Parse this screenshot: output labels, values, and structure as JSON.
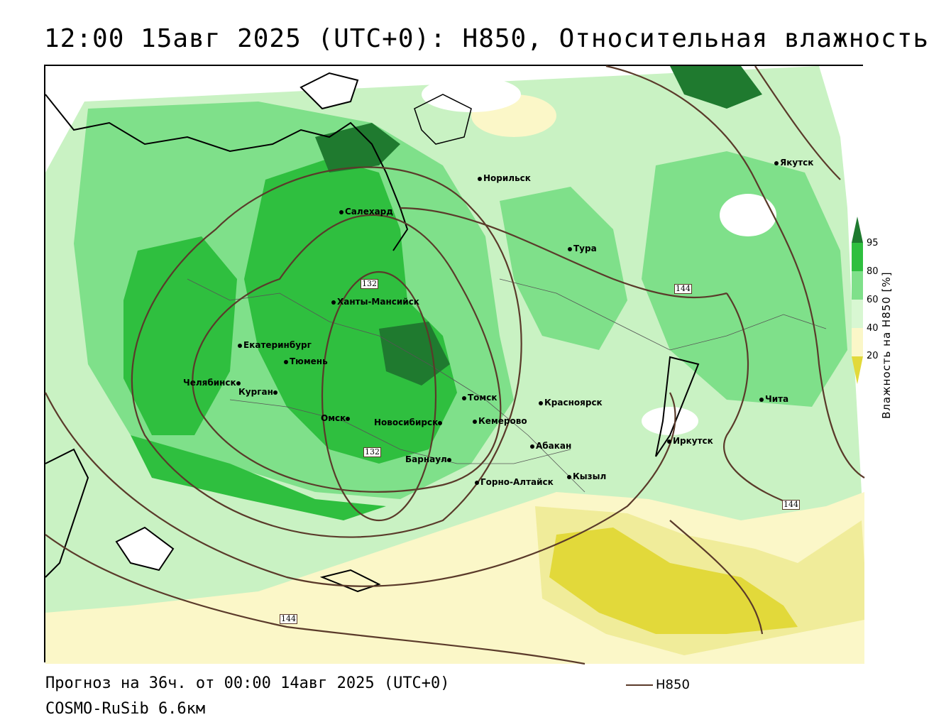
{
  "title": "12:00 15авг 2025 (UTC+0): H850, Относительная влажность",
  "footer": {
    "forecast": "Прогноз на 36ч. от 00:00 14авг 2025 (UTC+0)",
    "model": "COSMO-RuSib 6.6км"
  },
  "legend": {
    "line_label": "H850",
    "line_color": "#5a3a2a"
  },
  "colorbar": {
    "title": "Влажность на H850 [%]",
    "ticks": [
      "95",
      "80",
      "60",
      "40",
      "20"
    ],
    "colors": {
      "c95": "#1f7a2f",
      "c80": "#2fbf3f",
      "c60": "#7fe08a",
      "c40": "#d8f7d2",
      "c20": "#fbf7c8",
      "c10": "#f0ec9a",
      "c0": "#e2d93a"
    }
  },
  "isolines": [
    "132",
    "132",
    "144",
    "144",
    "144"
  ],
  "cities": [
    "Норильск",
    "Якутск",
    "Салехард",
    "Тура",
    "Ханты-Мансийск",
    "Екатеринбург",
    "Тюмень",
    "Челябинск",
    "Курган",
    "Омск",
    "Новосибирск",
    "Томск",
    "Красноярск",
    "Кемерово",
    "Барнаул",
    "Абакан",
    "Иркутск",
    "Чита",
    "Горно-Алтайск",
    "Кызыл"
  ]
}
